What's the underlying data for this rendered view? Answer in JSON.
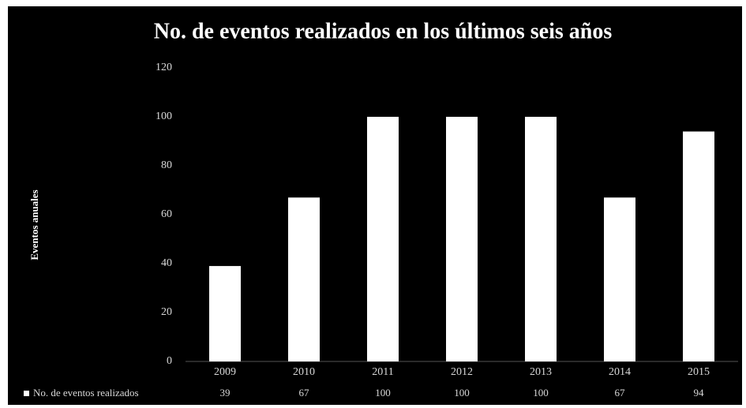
{
  "chart_data": {
    "type": "bar",
    "title": "No. de eventos realizados en los últimos seis años",
    "y_label": "Eventos anuales",
    "categories": [
      "2009",
      "2010",
      "2011",
      "2012",
      "2013",
      "2014",
      "2015"
    ],
    "series": [
      {
        "name": "No. de eventos realizados",
        "color": "#ffffff",
        "values": [
          39,
          67,
          100,
          100,
          100,
          67,
          94
        ]
      }
    ],
    "ylim": [
      0,
      120
    ],
    "yticks": [
      0,
      20,
      40,
      60,
      80,
      100,
      120
    ],
    "grid": false,
    "legend": "bottom-left"
  }
}
